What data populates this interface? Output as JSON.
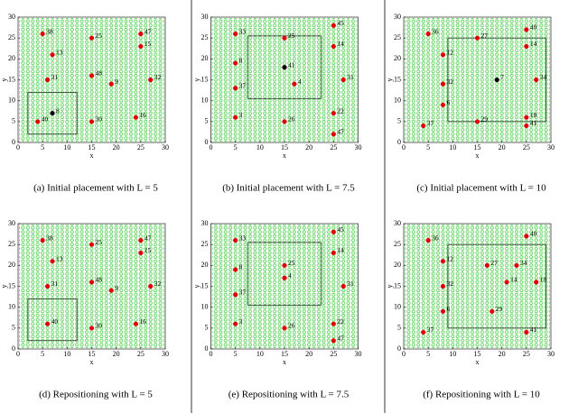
{
  "chart_data": [
    {
      "type": "scatter",
      "caption": "(a) Initial placement with L = 5",
      "xlabel": "x",
      "ylabel": "y",
      "xlim": [
        0,
        30
      ],
      "ylim": [
        0,
        30
      ],
      "xticks": [
        0,
        5,
        10,
        15,
        20,
        25,
        30
      ],
      "yticks": [
        0,
        5,
        10,
        15,
        20,
        25,
        30
      ],
      "labels": [
        "38",
        "25",
        "47",
        "13",
        "15",
        "31",
        "48",
        "9",
        "32",
        "30",
        "16",
        "40",
        "8"
      ],
      "x": [
        5,
        15,
        25,
        7,
        25,
        6,
        15,
        19,
        27,
        15,
        24,
        4,
        7
      ],
      "y": [
        26,
        25,
        26,
        21,
        23,
        15,
        16,
        14,
        15,
        5,
        6,
        5,
        7
      ],
      "colors": [
        "#e00000",
        "#e00000",
        "#e00000",
        "#e00000",
        "#e00000",
        "#e00000",
        "#e00000",
        "#e00000",
        "#e00000",
        "#e00000",
        "#e00000",
        "#e00000",
        "#000000"
      ],
      "region": {
        "x": [
          2,
          12
        ],
        "y": [
          2,
          12
        ]
      }
    },
    {
      "type": "scatter",
      "caption": "(b) Initial placement with L = 7.5",
      "xlabel": "x",
      "ylabel": "y",
      "xlim": [
        0,
        30
      ],
      "ylim": [
        0,
        30
      ],
      "xticks": [
        0,
        5,
        10,
        15,
        20,
        25,
        30
      ],
      "yticks": [
        0,
        5,
        10,
        15,
        20,
        25,
        30
      ],
      "labels": [
        "33",
        "25",
        "45",
        "14",
        "8",
        "41",
        "37",
        "4",
        "31",
        "3",
        "26",
        "22",
        "47"
      ],
      "x": [
        5,
        15,
        25,
        25,
        5,
        15,
        5,
        17,
        27,
        5,
        15,
        25,
        25
      ],
      "y": [
        26,
        25,
        28,
        23,
        19,
        18,
        13,
        14,
        15,
        6,
        5,
        7,
        2
      ],
      "colors": [
        "#e00000",
        "#e00000",
        "#e00000",
        "#e00000",
        "#e00000",
        "#000000",
        "#e00000",
        "#e00000",
        "#e00000",
        "#e00000",
        "#e00000",
        "#e00000",
        "#e00000"
      ],
      "region": {
        "x": [
          7.5,
          22.5
        ],
        "y": [
          10.5,
          25.5
        ]
      }
    },
    {
      "type": "scatter",
      "caption": "(c) Initial placement with L = 10",
      "xlabel": "x",
      "ylabel": "y",
      "xlim": [
        0,
        30
      ],
      "ylim": [
        0,
        30
      ],
      "xticks": [
        0,
        5,
        10,
        15,
        20,
        25,
        30
      ],
      "yticks": [
        0,
        5,
        10,
        15,
        20,
        25,
        30
      ],
      "labels": [
        "36",
        "27",
        "40",
        "14",
        "12",
        "32",
        "7",
        "34",
        "6",
        "37",
        "29",
        "18",
        "41"
      ],
      "x": [
        5,
        15,
        25,
        25,
        8,
        8,
        19,
        27,
        8,
        4,
        15,
        25,
        25
      ],
      "y": [
        26,
        25,
        27,
        23,
        21,
        14,
        15,
        15,
        9,
        4,
        5,
        6,
        4
      ],
      "colors": [
        "#e00000",
        "#e00000",
        "#e00000",
        "#e00000",
        "#e00000",
        "#e00000",
        "#000000",
        "#e00000",
        "#e00000",
        "#e00000",
        "#e00000",
        "#e00000",
        "#e00000"
      ],
      "region": {
        "x": [
          9,
          29
        ],
        "y": [
          5,
          25
        ]
      }
    },
    {
      "type": "scatter",
      "caption": "(d) Repositioning with L = 5",
      "xlabel": "x",
      "ylabel": "y",
      "xlim": [
        0,
        30
      ],
      "ylim": [
        0,
        30
      ],
      "xticks": [
        0,
        5,
        10,
        15,
        20,
        25,
        30
      ],
      "yticks": [
        0,
        5,
        10,
        15,
        20,
        25,
        30
      ],
      "labels": [
        "38",
        "25",
        "47",
        "13",
        "15",
        "31",
        "48",
        "9",
        "32",
        "30",
        "16",
        "40"
      ],
      "x": [
        5,
        15,
        25,
        7,
        25,
        6,
        15,
        19,
        27,
        15,
        24,
        6
      ],
      "y": [
        26,
        25,
        26,
        21,
        23,
        15,
        16,
        14,
        15,
        5,
        6,
        6
      ],
      "colors": [
        "#e00000",
        "#e00000",
        "#e00000",
        "#e00000",
        "#e00000",
        "#e00000",
        "#e00000",
        "#e00000",
        "#e00000",
        "#e00000",
        "#e00000",
        "#e00000"
      ],
      "region": {
        "x": [
          2,
          12
        ],
        "y": [
          2,
          12
        ]
      }
    },
    {
      "type": "scatter",
      "caption": "(e) Repositioning with L = 7.5",
      "xlabel": "x",
      "ylabel": "y",
      "xlim": [
        0,
        30
      ],
      "ylim": [
        0,
        30
      ],
      "xticks": [
        0,
        5,
        10,
        15,
        20,
        25,
        30
      ],
      "yticks": [
        0,
        5,
        10,
        15,
        20,
        25,
        30
      ],
      "labels": [
        "33",
        "45",
        "14",
        "8",
        "25",
        "4",
        "37",
        "31",
        "3",
        "26",
        "22",
        "47"
      ],
      "x": [
        5,
        25,
        25,
        5,
        15,
        15,
        5,
        27,
        5,
        15,
        25,
        25
      ],
      "y": [
        26,
        28,
        23,
        19,
        20,
        17,
        13,
        15,
        6,
        5,
        6,
        2
      ],
      "colors": [
        "#e00000",
        "#e00000",
        "#e00000",
        "#e00000",
        "#e00000",
        "#e00000",
        "#e00000",
        "#e00000",
        "#e00000",
        "#e00000",
        "#e00000",
        "#e00000"
      ],
      "region": {
        "x": [
          7.5,
          22.5
        ],
        "y": [
          10.5,
          25.5
        ]
      }
    },
    {
      "type": "scatter",
      "caption": "(f) Repositioning with L = 10",
      "xlabel": "x",
      "ylabel": "y",
      "xlim": [
        0,
        30
      ],
      "ylim": [
        0,
        30
      ],
      "xticks": [
        0,
        5,
        10,
        15,
        20,
        25,
        30
      ],
      "yticks": [
        0,
        5,
        10,
        15,
        20,
        25,
        30
      ],
      "labels": [
        "36",
        "40",
        "12",
        "27",
        "34",
        "32",
        "14",
        "18",
        "6",
        "29",
        "37",
        "41"
      ],
      "x": [
        5,
        25,
        8,
        17,
        23,
        8,
        21,
        27,
        8,
        18,
        4,
        25
      ],
      "y": [
        26,
        27,
        21,
        20,
        20,
        15,
        16,
        16,
        9,
        9,
        4,
        4
      ],
      "colors": [
        "#e00000",
        "#e00000",
        "#e00000",
        "#e00000",
        "#e00000",
        "#e00000",
        "#e00000",
        "#e00000",
        "#e00000",
        "#e00000",
        "#e00000",
        "#e00000"
      ],
      "region": {
        "x": [
          9,
          29
        ],
        "y": [
          5,
          25
        ]
      }
    }
  ]
}
